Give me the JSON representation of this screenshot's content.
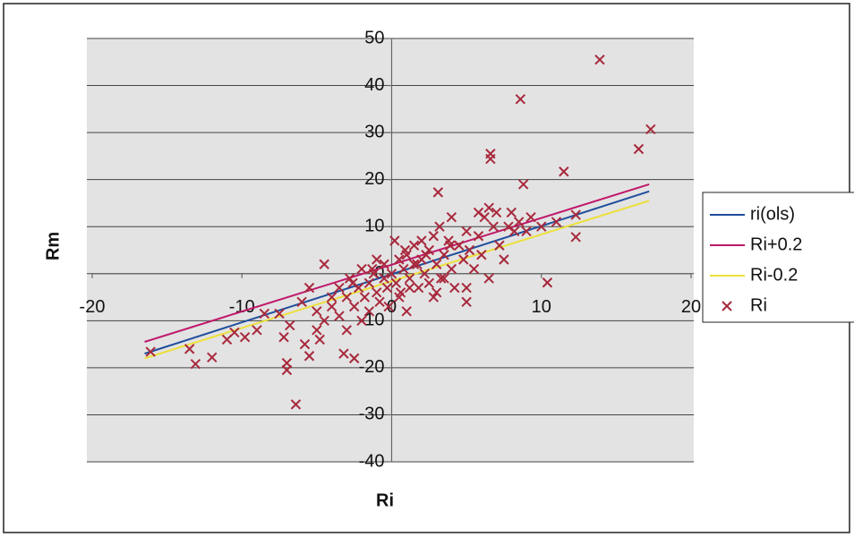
{
  "chart_data": {
    "type": "scatter",
    "x_label": "Ri",
    "y_label": "Rm",
    "xlim": [
      -20,
      20
    ],
    "xticks": [
      -20,
      -10,
      0,
      10,
      20
    ],
    "ylim": [
      -40,
      50
    ],
    "yticks": [
      -40,
      -30,
      -20,
      -10,
      0,
      10,
      20,
      30,
      40,
      50
    ],
    "grid": true,
    "legend": "right",
    "series": [
      {
        "name": "ri(ols)",
        "type": "line",
        "color": "#1f4e9c",
        "x": [
          -16.5,
          17.2
        ],
        "values": [
          -17,
          17.5
        ]
      },
      {
        "name": "Ri+0.2",
        "type": "line",
        "color": "#c0186a",
        "x": [
          -16.5,
          17.2
        ],
        "values": [
          -14.5,
          19
        ]
      },
      {
        "name": "Ri-0.2",
        "type": "line",
        "color": "#ece03a",
        "x": [
          -16.5,
          17.2
        ],
        "values": [
          -18,
          15.5
        ]
      },
      {
        "name": "Ri",
        "type": "scatter",
        "marker": "x",
        "color": "#a8283c",
        "x": [
          13.9,
          8.6,
          17.3,
          16.5,
          6.6,
          6.6,
          11.5,
          8.8,
          3.1,
          12.3,
          12.3,
          10.4,
          -6.4,
          -16.1,
          -13.1,
          -12.0,
          -13.5,
          -11,
          -10.5,
          -9.8,
          -9,
          -8.5,
          -7.5,
          -7.2,
          -7,
          -7,
          -6.8,
          -6,
          -5.8,
          -5.5,
          -5.5,
          -5,
          -5,
          -4.8,
          -4.5,
          -4.5,
          -4,
          -4,
          -3.5,
          -3.5,
          -3.2,
          -3,
          -3,
          -2.8,
          -2.5,
          -2.5,
          -2.2,
          -2,
          -2,
          -1.8,
          -1.5,
          -1.5,
          -1.2,
          -1,
          -1,
          -0.8,
          -0.5,
          -0.5,
          -0.3,
          0,
          0.2,
          0.3,
          0.5,
          0.5,
          0.8,
          1,
          1,
          1.2,
          1.5,
          1.5,
          1.8,
          2,
          2,
          2.2,
          2.5,
          2.5,
          2.8,
          3,
          3,
          3.2,
          3.5,
          3.5,
          3.8,
          4,
          4,
          4.2,
          4.5,
          4.8,
          5,
          5,
          5.2,
          5.5,
          5.8,
          6,
          6.2,
          6.5,
          6.5,
          6.8,
          7,
          7.2,
          7.5,
          7.8,
          8,
          8.2,
          8.5,
          9,
          9.3,
          10,
          11,
          5,
          2.8,
          1.2,
          -0.2,
          3.3,
          5.8,
          0.9,
          1.7,
          2.3,
          -1.3,
          -2.6,
          0.6,
          3.9
        ],
        "values": [
          45.5,
          37.1,
          30.7,
          26.5,
          24.4,
          25.5,
          21.7,
          19,
          17.3,
          12.5,
          7.8,
          -1.9,
          -27.8,
          -16.6,
          -19.2,
          -17.8,
          -16,
          -14,
          -12.5,
          -13.5,
          -12,
          -8.5,
          -8.5,
          -13.5,
          -19,
          -20.5,
          -11,
          -6,
          -15,
          -17.5,
          -3,
          -8,
          -12,
          -14,
          2,
          -10,
          -5,
          -7,
          -3,
          -9,
          -17,
          -12,
          -5,
          -1,
          -18,
          -7,
          -3,
          1,
          -10,
          -5,
          -2,
          -8,
          0,
          -4,
          3,
          -6,
          -1,
          2,
          -3,
          0,
          7,
          -2,
          3,
          -5,
          1,
          -8,
          4,
          -1,
          6,
          2,
          -3,
          3,
          7,
          0,
          5,
          -2,
          8,
          2,
          -4,
          10,
          4,
          -1,
          7,
          1,
          12,
          -3,
          6,
          3,
          9,
          -6,
          5,
          1,
          8,
          4,
          12,
          14,
          -1,
          10,
          13,
          6,
          3,
          10,
          13,
          9,
          11,
          9,
          12,
          10,
          11,
          -3,
          -5,
          -3,
          -7,
          -1,
          13,
          5,
          2,
          4,
          1,
          -2,
          -4,
          6
        ]
      }
    ]
  }
}
